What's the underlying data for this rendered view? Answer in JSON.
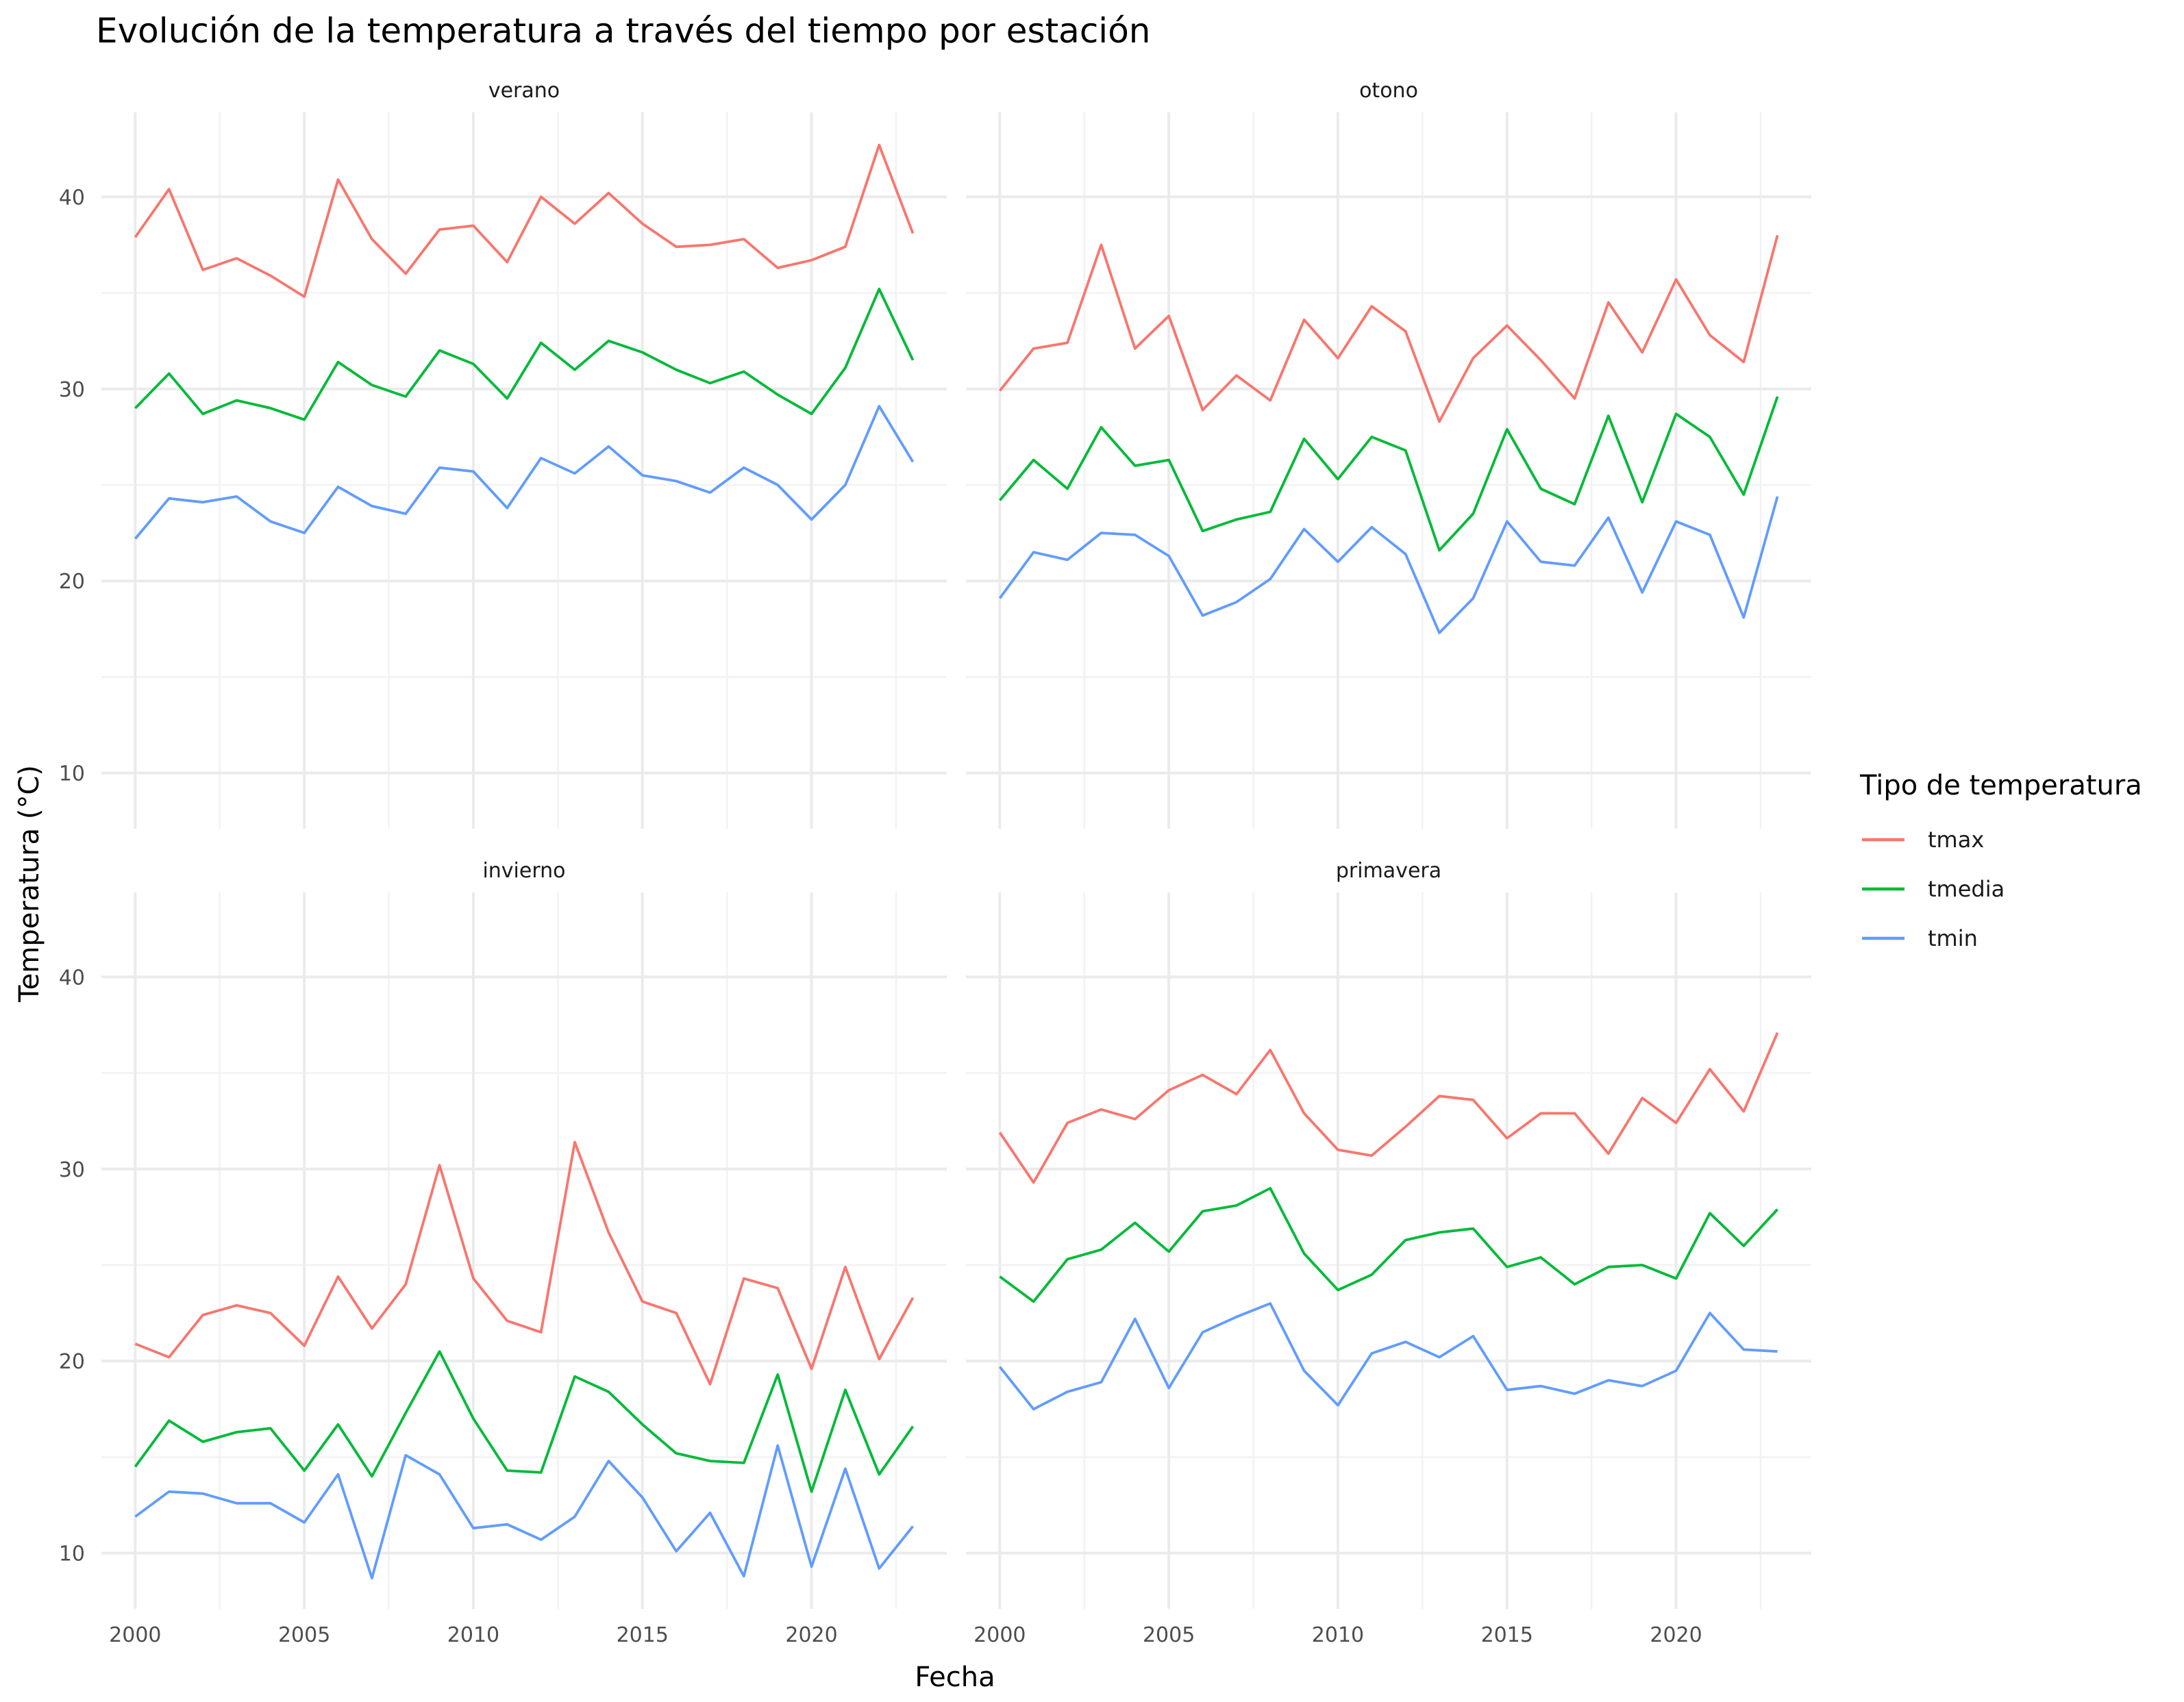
{
  "chart_data": {
    "type": "line",
    "title": "Evolución de la temperatura a través del tiempo por estación",
    "xlabel": "Fecha",
    "ylabel": "Temperatura (°C)",
    "x": [
      2000,
      2001,
      2002,
      2003,
      2004,
      2005,
      2006,
      2007,
      2008,
      2009,
      2010,
      2011,
      2012,
      2013,
      2014,
      2015,
      2016,
      2017,
      2018,
      2019,
      2020,
      2021,
      2022,
      2023
    ],
    "x_ticks": [
      "2000",
      "2005",
      "2010",
      "2015",
      "2020"
    ],
    "y_ticks": [
      "10",
      "20",
      "30",
      "40"
    ],
    "xlim": [
      1999,
      2024
    ],
    "ylim": [
      7.1,
      44.4
    ],
    "grid": true,
    "legend": {
      "title": "Tipo de temperatura",
      "position": "right",
      "entries": [
        {
          "key": "tmax",
          "label": "tmax",
          "color": "#F8766D"
        },
        {
          "key": "tmedia",
          "label": "tmedia",
          "color": "#00BA38"
        },
        {
          "key": "tmin",
          "label": "tmin",
          "color": "#619CFF"
        }
      ]
    },
    "facets": [
      {
        "name": "verano",
        "series": [
          {
            "name": "tmax",
            "values": [
              37.9,
              40.4,
              36.2,
              36.8,
              35.9,
              34.8,
              40.9,
              37.8,
              36.0,
              38.3,
              38.5,
              36.6,
              40.0,
              38.6,
              40.2,
              38.6,
              37.4,
              37.5,
              37.8,
              36.3,
              36.7,
              37.4,
              42.7,
              38.1
            ]
          },
          {
            "name": "tmedia",
            "values": [
              29.0,
              30.8,
              28.7,
              29.4,
              29.0,
              28.4,
              31.4,
              30.2,
              29.6,
              32.0,
              31.3,
              29.5,
              32.4,
              31.0,
              32.5,
              31.9,
              31.0,
              30.3,
              30.9,
              29.7,
              28.7,
              31.1,
              35.2,
              31.5
            ]
          },
          {
            "name": "tmin",
            "values": [
              22.2,
              24.3,
              24.1,
              24.4,
              23.1,
              22.5,
              24.9,
              23.9,
              23.5,
              25.9,
              25.7,
              23.8,
              26.4,
              25.6,
              27.0,
              25.5,
              25.2,
              24.6,
              25.9,
              25.0,
              23.2,
              25.0,
              29.1,
              26.2
            ]
          }
        ]
      },
      {
        "name": "otono",
        "series": [
          {
            "name": "tmax",
            "values": [
              29.9,
              32.1,
              32.4,
              37.5,
              32.1,
              33.8,
              28.9,
              30.7,
              29.4,
              33.6,
              31.6,
              34.3,
              33.0,
              28.3,
              31.6,
              33.3,
              31.5,
              29.5,
              34.5,
              31.9,
              35.7,
              32.8,
              31.4,
              38.0
            ]
          },
          {
            "name": "tmedia",
            "values": [
              24.2,
              26.3,
              24.8,
              28.0,
              26.0,
              26.3,
              22.6,
              23.2,
              23.6,
              27.4,
              25.3,
              27.5,
              26.8,
              21.6,
              23.5,
              27.9,
              24.8,
              24.0,
              28.6,
              24.1,
              28.7,
              27.5,
              24.5,
              29.6
            ]
          },
          {
            "name": "tmin",
            "values": [
              19.1,
              21.5,
              21.1,
              22.5,
              22.4,
              21.3,
              18.2,
              18.9,
              20.1,
              22.7,
              21.0,
              22.8,
              21.4,
              17.3,
              19.1,
              23.1,
              21.0,
              20.8,
              23.3,
              19.4,
              23.1,
              22.4,
              18.1,
              24.4
            ]
          }
        ]
      },
      {
        "name": "invierno",
        "series": [
          {
            "name": "tmax",
            "values": [
              20.9,
              20.2,
              22.4,
              22.9,
              22.5,
              20.8,
              24.4,
              21.7,
              24.0,
              30.2,
              24.3,
              22.1,
              21.5,
              31.4,
              26.7,
              23.1,
              22.5,
              18.8,
              24.3,
              23.8,
              19.6,
              24.9,
              20.1,
              23.3
            ]
          },
          {
            "name": "tmedia",
            "values": [
              14.5,
              16.9,
              15.8,
              16.3,
              16.5,
              14.3,
              16.7,
              14.0,
              17.3,
              20.5,
              17.0,
              14.3,
              14.2,
              19.2,
              18.4,
              16.7,
              15.2,
              14.8,
              14.7,
              19.3,
              13.2,
              18.5,
              14.1,
              16.6
            ]
          },
          {
            "name": "tmin",
            "values": [
              11.9,
              13.2,
              13.1,
              12.6,
              12.6,
              11.6,
              14.1,
              8.7,
              15.1,
              14.1,
              11.3,
              11.5,
              10.7,
              11.9,
              14.8,
              12.9,
              10.1,
              12.1,
              8.8,
              15.6,
              9.3,
              14.4,
              9.2,
              11.4
            ]
          }
        ]
      },
      {
        "name": "primavera",
        "series": [
          {
            "name": "tmax",
            "values": [
              31.9,
              29.3,
              32.4,
              33.1,
              32.6,
              34.1,
              34.9,
              33.9,
              36.2,
              32.9,
              31.0,
              30.7,
              32.2,
              33.8,
              33.6,
              31.6,
              32.9,
              32.9,
              30.8,
              33.7,
              32.4,
              35.2,
              33.0,
              37.1
            ]
          },
          {
            "name": "tmedia",
            "values": [
              24.4,
              23.1,
              25.3,
              25.8,
              27.2,
              25.7,
              27.8,
              28.1,
              29.0,
              25.6,
              23.7,
              24.5,
              26.3,
              26.7,
              26.9,
              24.9,
              25.4,
              24.0,
              24.9,
              25.0,
              24.3,
              27.7,
              26.0,
              27.9
            ]
          },
          {
            "name": "tmin",
            "values": [
              19.7,
              17.5,
              18.4,
              18.9,
              22.2,
              18.6,
              21.5,
              22.3,
              23.0,
              19.5,
              17.7,
              20.4,
              21.0,
              20.2,
              21.3,
              18.5,
              18.7,
              18.3,
              19.0,
              18.7,
              19.5,
              22.5,
              20.6,
              20.5
            ]
          }
        ]
      }
    ]
  }
}
